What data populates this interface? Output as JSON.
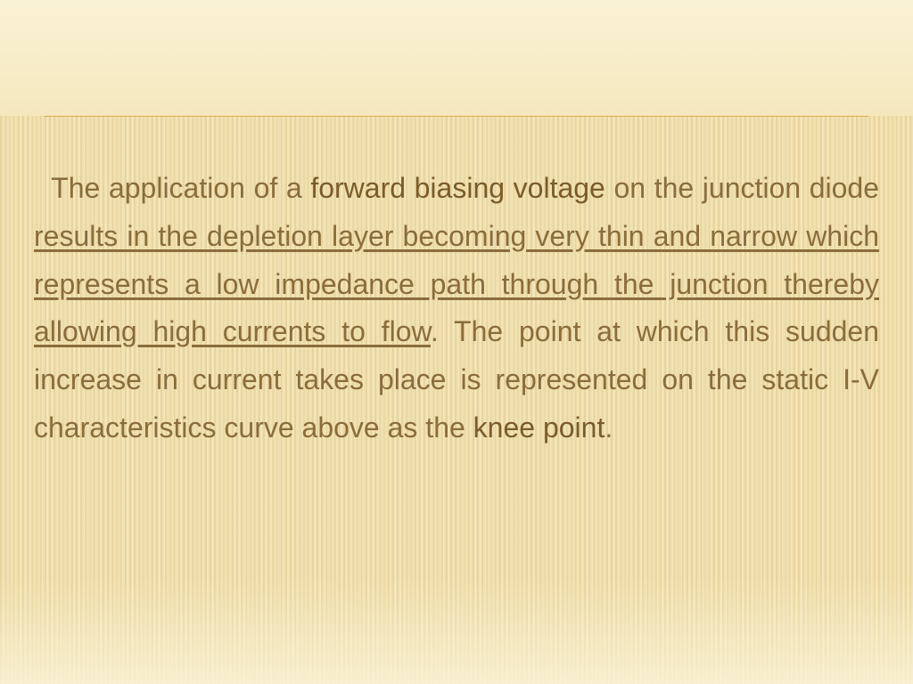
{
  "slide": {
    "background_top_color": "#f9f0d0",
    "background_stripe_light": "#f5e6b8",
    "background_stripe_dark": "#e8d39a",
    "divider_color": "#d4a848",
    "text_color": "#8a6d3b",
    "bold_color": "#7a5c2a",
    "font_size_pt": 32,
    "line_height": 1.68,
    "segments": {
      "s1": "The application of a ",
      "s2_bold": "forward biasing voltage",
      "s3": " on the junction diode ",
      "s4_under": "results in the depletion layer becoming very thin and narrow which represents a low impedance path through the junction thereby allowing high currents to flow",
      "s5": ". The point at which this sudden increase in current takes place is represented on the static I-V characteristics curve above as the ",
      "s6_bold": "knee point",
      "s7": "."
    }
  }
}
